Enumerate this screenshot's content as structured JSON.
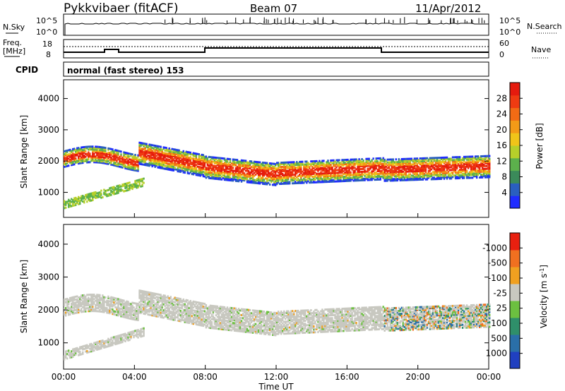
{
  "header": {
    "title": "Pykkvibaer (fitACF)",
    "beam": "Beam 07",
    "date": "11/Apr/2012"
  },
  "strip_panels": {
    "nsky": {
      "label": "N.Sky",
      "ticks_left": [
        "10^5",
        "10^0"
      ],
      "ticks_right": [
        "10^5",
        "10^0"
      ],
      "right_label": "N.Search"
    },
    "freq": {
      "label_line1": "Freq.",
      "label_line2": "[MHz]",
      "ticks_left": [
        "18",
        "8"
      ],
      "ticks_right": [
        "60",
        "0"
      ],
      "right_label": "Nave"
    },
    "cpid": {
      "label": "CPID",
      "text": "normal (fast stereo) 153"
    }
  },
  "chart_data": [
    {
      "type": "heatmap",
      "name": "power",
      "ylabel": "Slant Range [km]",
      "yticks": [
        "1000",
        "2000",
        "3000",
        "4000"
      ],
      "ylim": [
        200,
        4600
      ],
      "xlim_hours": [
        0,
        24
      ],
      "colorbar": {
        "label": "Power [dB]",
        "ticks": [
          "4",
          "8",
          "12",
          "16",
          "20",
          "24",
          "28"
        ],
        "colors": [
          "#1f2cff",
          "#2a5fbf",
          "#3b8a5a",
          "#5cb04c",
          "#b6cf2a",
          "#f0c419",
          "#f39a17",
          "#f26b15",
          "#ef3b12",
          "#e51b0e"
        ]
      }
    },
    {
      "type": "heatmap",
      "name": "velocity",
      "ylabel": "Slant Range [km]",
      "yticks": [
        "1000",
        "2000",
        "3000",
        "4000"
      ],
      "ylim": [
        200,
        4600
      ],
      "xlim_hours": [
        0,
        24
      ],
      "colorbar": {
        "label": "Velocity [m s",
        "label_sup": "-1",
        "label_end": "]",
        "ticks": [
          "1000",
          "500",
          "100",
          "25",
          "-25",
          "-100",
          "-500",
          "-1000"
        ],
        "colors": [
          "#2040c0",
          "#2a6fa8",
          "#2f8f6a",
          "#6cc040",
          "#c8c8c0",
          "#f0a020",
          "#f07020",
          "#e82010"
        ]
      }
    }
  ],
  "time_axis": {
    "ticks": [
      "00:00",
      "04:00",
      "08:00",
      "12:00",
      "16:00",
      "20:00",
      "00:00"
    ],
    "label": "Time UT"
  }
}
